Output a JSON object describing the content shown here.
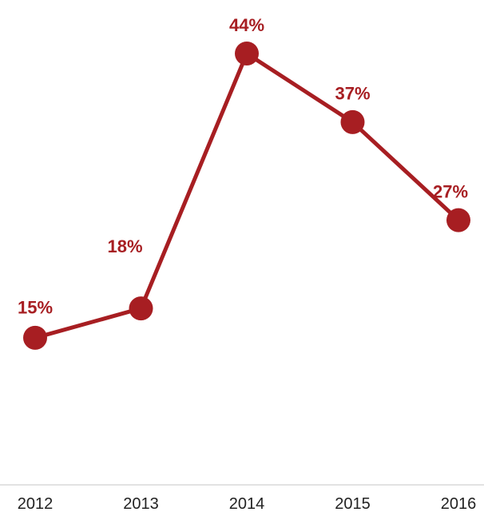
{
  "chart_data": {
    "type": "line",
    "categories": [
      "2012",
      "2013",
      "2014",
      "2015",
      "2016"
    ],
    "series": [
      {
        "values": [
          15,
          18,
          44,
          37,
          27
        ],
        "labels": [
          "15%",
          "18%",
          "44%",
          "37%",
          "27%"
        ]
      }
    ],
    "ylim": [
      0,
      47
    ],
    "grid": false,
    "legend": "none",
    "color": "#a71e22",
    "axis_color": "#d9d9d9"
  }
}
